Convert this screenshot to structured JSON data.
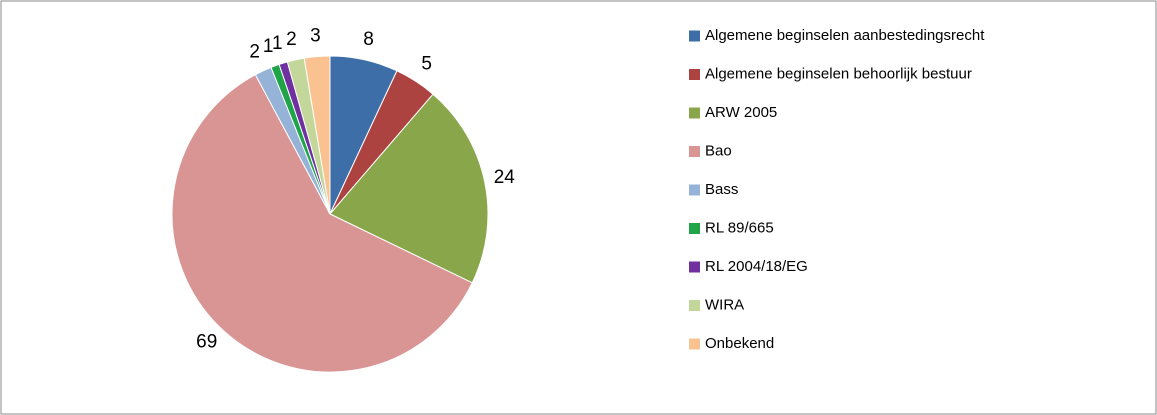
{
  "chart_data": {
    "type": "pie",
    "categories": [
      "Algemene beginselen aanbestedingsrecht",
      "Algemene beginselen behoorlijk bestuur",
      "ARW 2005",
      "Bao",
      "Bass",
      "RL 89/665",
      "RL 2004/18/EG",
      "WIRA",
      "Onbekend"
    ],
    "values": [
      8,
      5,
      24,
      69,
      2,
      1,
      1,
      2,
      3
    ],
    "colors": [
      "#3d6ea8",
      "#ad4340",
      "#8aa64a",
      "#d99594",
      "#95b3d7",
      "#1fa548",
      "#7030a0",
      "#c4d79b",
      "#fac191"
    ],
    "legend": "right"
  }
}
